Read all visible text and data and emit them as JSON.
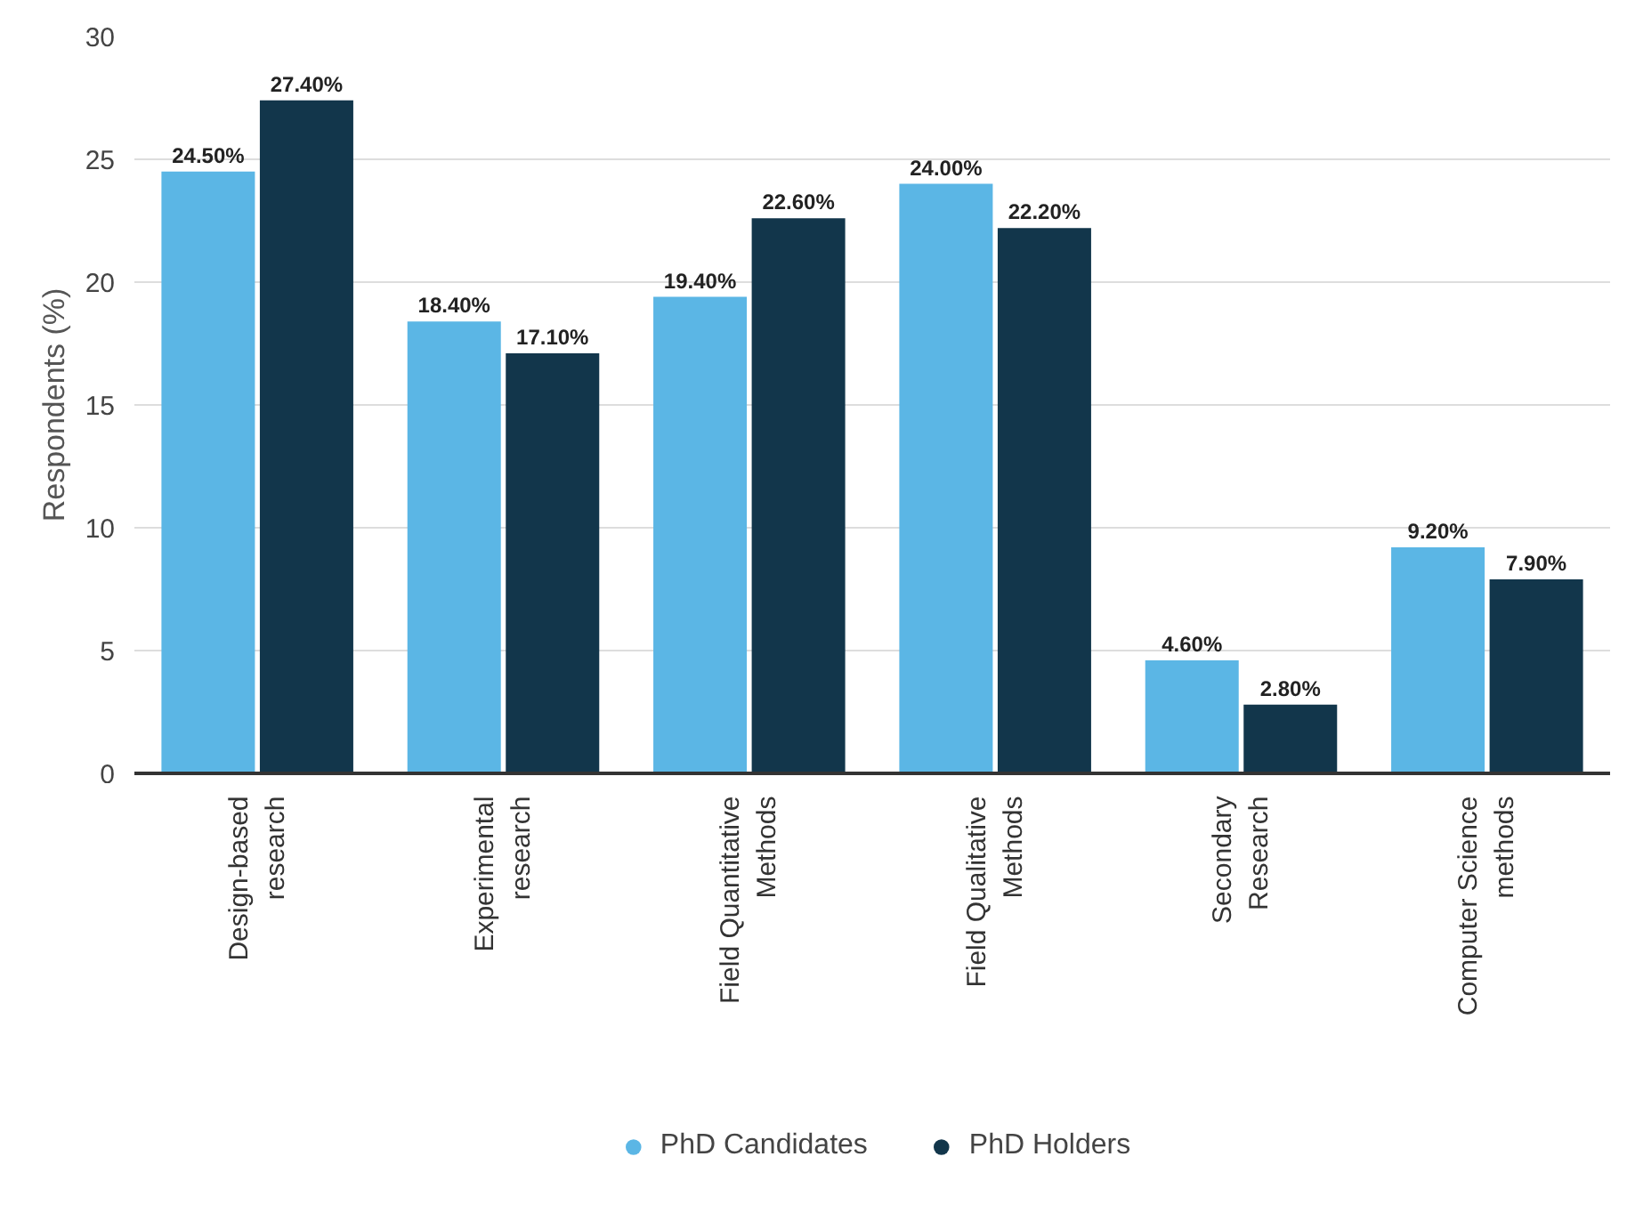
{
  "chart_data": {
    "type": "bar",
    "ylabel": "Respondents (%)",
    "categories": [
      "Design-based research",
      "Experimental research",
      "Field Quantitative Methods",
      "Field Qualitative Methods",
      "Secondary Research",
      "Computer Science methods"
    ],
    "series": [
      {
        "name": "PhD Candidates",
        "color": "#5bb6e5",
        "values": [
          24.5,
          18.4,
          19.4,
          24.0,
          4.6,
          9.2
        ],
        "value_labels": [
          "24.50%",
          "18.40%",
          "19.40%",
          "24.00%",
          "4.60%",
          "9.20%"
        ]
      },
      {
        "name": "PhD Holders",
        "color": "#12364b",
        "values": [
          27.4,
          17.1,
          22.6,
          22.2,
          2.8,
          7.9
        ],
        "value_labels": [
          "27.40%",
          "17.10%",
          "22.60%",
          "22.20%",
          "2.80%",
          "7.90%"
        ]
      }
    ],
    "ylim": [
      0,
      30
    ],
    "yticks": [
      0,
      5,
      10,
      15,
      20,
      25,
      30
    ],
    "grid": "y",
    "legend": "bottom"
  }
}
